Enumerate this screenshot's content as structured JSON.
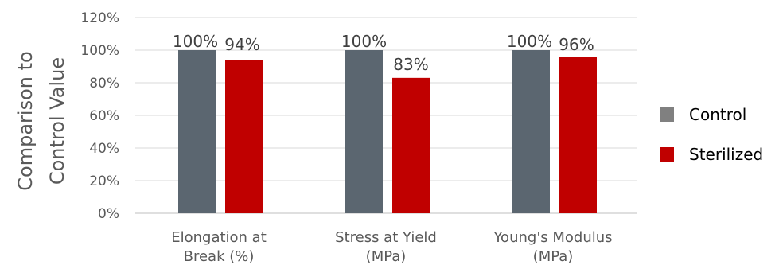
{
  "chart_data": {
    "type": "bar",
    "title": "",
    "ylabel_lines": [
      "Comparison to",
      "Control Value"
    ],
    "ylim": [
      0,
      120
    ],
    "y_ticks": [
      "0%",
      "20%",
      "40%",
      "60%",
      "80%",
      "100%",
      "120%"
    ],
    "y_tick_values": [
      0,
      20,
      40,
      60,
      80,
      100,
      120
    ],
    "categories": [
      [
        "Elongation at",
        "Break (%)"
      ],
      [
        "Stress at Yield",
        "(MPa)"
      ],
      [
        "Young's Modulus",
        "(MPa)"
      ]
    ],
    "series": [
      {
        "name": "Control",
        "color": "#5b6670",
        "values": [
          100,
          100,
          100
        ],
        "labels": [
          "100%",
          "100%",
          "100%"
        ]
      },
      {
        "name": "Sterilized",
        "color": "#c00000",
        "values": [
          94,
          83,
          96
        ],
        "labels": [
          "94%",
          "83%",
          "96%"
        ]
      }
    ],
    "grid": true,
    "legend_position": "right"
  }
}
